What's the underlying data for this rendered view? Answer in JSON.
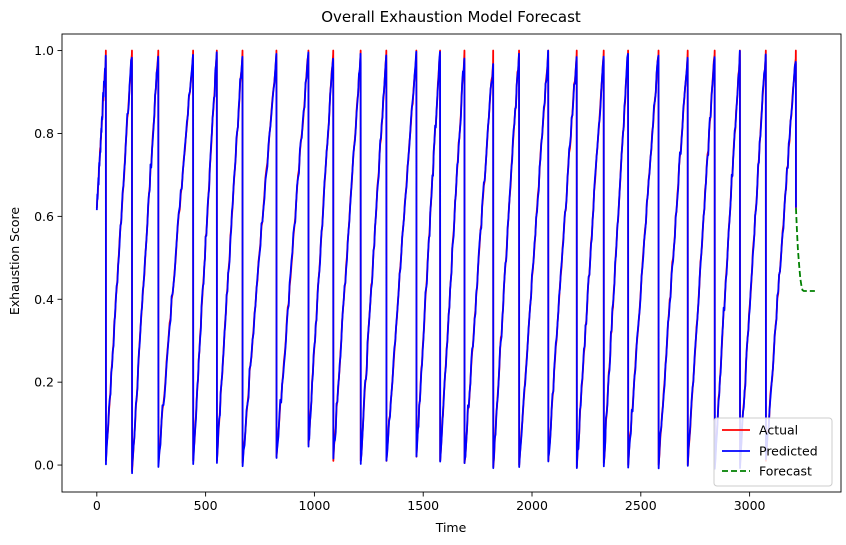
{
  "chart_data": {
    "type": "line",
    "title": "Overall Exhaustion Model Forecast",
    "xlabel": "Time",
    "ylabel": "Exhaustion Score",
    "xlim": [
      -160,
      3420
    ],
    "ylim": [
      -0.065,
      1.04
    ],
    "xticks": [
      0,
      500,
      1000,
      1500,
      2000,
      2500,
      3000
    ],
    "yticks": [
      0.0,
      0.2,
      0.4,
      0.6,
      0.8,
      1.0
    ],
    "ytick_labels": [
      "0.0",
      "0.2",
      "0.4",
      "0.6",
      "0.8",
      "1.0"
    ],
    "grid": false,
    "legend_position": "lower-right",
    "series": [
      {
        "name": "Actual",
        "color": "#ff0000",
        "style": "solid"
      },
      {
        "name": "Predicted",
        "color": "#0000ff",
        "style": "solid"
      },
      {
        "name": "Forecast",
        "color": "#008000",
        "style": "dashed",
        "x": [
          3213,
          3218,
          3222,
          3228,
          3233,
          3239,
          3243,
          3249,
          3254,
          3260,
          3265,
          3270,
          3280,
          3290,
          3300
        ],
        "y": [
          0.62,
          0.56,
          0.52,
          0.48,
          0.45,
          0.43,
          0.422,
          0.42,
          0.42,
          0.42,
          0.42,
          0.42,
          0.42,
          0.42,
          0.42
        ]
      }
    ],
    "sawtooth_cycles": [
      {
        "start": 0,
        "end": 42,
        "start_y": 0.62,
        "peak": 0.98,
        "drop_to": 0.01
      },
      {
        "start": 42,
        "end": 162,
        "start_y": 0.01,
        "peak": 0.99,
        "drop_to": -0.015
      },
      {
        "start": 162,
        "end": 283,
        "start_y": -0.015,
        "peak": 0.99,
        "drop_to": 0.005
      },
      {
        "start": 283,
        "end": 443,
        "start_y": 0.005,
        "peak": 0.99,
        "drop_to": 0.01
      },
      {
        "start": 443,
        "end": 552,
        "start_y": 0.01,
        "peak": 0.99,
        "drop_to": 0.01
      },
      {
        "start": 552,
        "end": 670,
        "start_y": 0.01,
        "peak": 0.99,
        "drop_to": 0.005
      },
      {
        "start": 670,
        "end": 826,
        "start_y": 0.005,
        "peak": 0.99,
        "drop_to": 0.02
      },
      {
        "start": 826,
        "end": 973,
        "start_y": 0.02,
        "peak": 0.99,
        "drop_to": 0.05
      },
      {
        "start": 973,
        "end": 1087,
        "start_y": 0.05,
        "peak": 0.99,
        "drop_to": 0.01
      },
      {
        "start": 1087,
        "end": 1213,
        "start_y": 0.01,
        "peak": 0.99,
        "drop_to": 0.01
      },
      {
        "start": 1213,
        "end": 1331,
        "start_y": 0.01,
        "peak": 0.99,
        "drop_to": 0.01
      },
      {
        "start": 1331,
        "end": 1469,
        "start_y": 0.01,
        "peak": 0.99,
        "drop_to": 0.02
      },
      {
        "start": 1469,
        "end": 1578,
        "start_y": 0.02,
        "peak": 0.99,
        "drop_to": 0.01
      },
      {
        "start": 1578,
        "end": 1690,
        "start_y": 0.01,
        "peak": 0.99,
        "drop_to": 0.005
      },
      {
        "start": 1690,
        "end": 1822,
        "start_y": 0.005,
        "peak": 0.97,
        "drop_to": -0.005
      },
      {
        "start": 1822,
        "end": 1941,
        "start_y": -0.005,
        "peak": 0.99,
        "drop_to": 0.0
      },
      {
        "start": 1941,
        "end": 2075,
        "start_y": 0.0,
        "peak": 0.99,
        "drop_to": 0.01
      },
      {
        "start": 2075,
        "end": 2206,
        "start_y": 0.01,
        "peak": 0.99,
        "drop_to": -0.005
      },
      {
        "start": 2206,
        "end": 2330,
        "start_y": -0.005,
        "peak": 0.99,
        "drop_to": 0.005
      },
      {
        "start": 2330,
        "end": 2442,
        "start_y": 0.005,
        "peak": 0.99,
        "drop_to": 0.0
      },
      {
        "start": 2442,
        "end": 2582,
        "start_y": 0.0,
        "peak": 0.99,
        "drop_to": 0.0
      },
      {
        "start": 2582,
        "end": 2716,
        "start_y": 0.0,
        "peak": 0.99,
        "drop_to": 0.0
      },
      {
        "start": 2716,
        "end": 2840,
        "start_y": 0.0,
        "peak": 0.99,
        "drop_to": 0.0
      },
      {
        "start": 2840,
        "end": 2956,
        "start_y": 0.0,
        "peak": 0.99,
        "drop_to": 0.0
      },
      {
        "start": 2956,
        "end": 3075,
        "start_y": 0.0,
        "peak": 0.99,
        "drop_to": 0.01
      },
      {
        "start": 3075,
        "end": 3213,
        "start_y": 0.01,
        "peak": 0.98,
        "drop_to": 0.62
      }
    ]
  }
}
